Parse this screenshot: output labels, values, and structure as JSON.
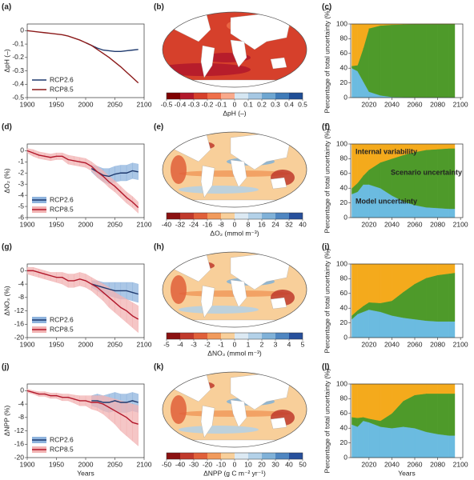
{
  "chart_data": [
    {
      "type": "line",
      "label": "(a)",
      "ylabel": "ΔpH (–)",
      "x": [
        1900,
        1910,
        1920,
        1930,
        1940,
        1950,
        1960,
        1970,
        1980,
        1990,
        2000,
        2010,
        2020,
        2030,
        2040,
        2050,
        2060,
        2070,
        2080,
        2090
      ],
      "xlim": [
        1900,
        2100
      ],
      "xticks": [
        1900,
        1950,
        2000,
        2050,
        2100
      ],
      "ylim": [
        -0.5,
        0.05
      ],
      "yticks": [
        0,
        -0.1,
        -0.2,
        -0.3,
        -0.4,
        -0.5
      ],
      "legend": "lower left",
      "series": [
        {
          "name": "RCP2.6",
          "color": "#1f3a6e",
          "values": [
            null,
            null,
            null,
            null,
            null,
            null,
            null,
            null,
            null,
            null,
            -0.09,
            -0.11,
            -0.13,
            -0.145,
            -0.15,
            -0.155,
            -0.155,
            -0.15,
            -0.145,
            -0.14
          ]
        },
        {
          "name": "RCP8.5",
          "color": "#8b1a1a",
          "values": [
            0,
            -0.005,
            -0.01,
            -0.015,
            -0.02,
            -0.025,
            -0.03,
            -0.04,
            -0.055,
            -0.07,
            -0.09,
            -0.11,
            -0.14,
            -0.17,
            -0.2,
            -0.235,
            -0.27,
            -0.31,
            -0.35,
            -0.39
          ]
        }
      ]
    },
    {
      "type": "map",
      "label": "(b)",
      "colorbar_label": "ΔpH (–)",
      "colorbar_ticks": [
        -0.5,
        -0.4,
        -0.3,
        -0.2,
        -0.1,
        0,
        0.1,
        0.2,
        0.3,
        0.4,
        0.5
      ],
      "colors": [
        "#7f0000",
        "#b2182b",
        "#d6402b",
        "#ef6f4a",
        "#f9a98b",
        "#d5e6f2",
        "#a6c8e3",
        "#6ea6d1",
        "#3f7bb8",
        "#1f4e96"
      ]
    },
    {
      "type": "area",
      "label": "(c)",
      "ylabel": "Percentage of total uncertainty (%)",
      "x": [
        2005,
        2010,
        2015,
        2020,
        2030,
        2040,
        2050,
        2060,
        2070,
        2080,
        2090,
        2095
      ],
      "xlim": [
        2004,
        2102
      ],
      "xticks": [
        2020,
        2040,
        2060,
        2080,
        2100
      ],
      "ylim": [
        0,
        100
      ],
      "yticks": [
        0,
        20,
        40,
        60,
        80,
        100
      ],
      "series": [
        {
          "color": "#6bbbe0",
          "values": [
            40,
            36,
            22,
            8,
            3,
            1,
            0.5,
            0.3,
            0.2,
            0.2,
            0.1,
            0.1
          ]
        },
        {
          "color": "#4e9a2a",
          "values": [
            3,
            8,
            45,
            86,
            95,
            98,
            99,
            99.5,
            99.7,
            99.8,
            99.9,
            99.9
          ]
        },
        {
          "color": "#f4aa1c",
          "values": [
            57,
            56,
            33,
            6,
            2,
            1,
            0.5,
            0.2,
            0.1,
            0,
            0,
            0
          ]
        }
      ]
    },
    {
      "type": "line",
      "label": "(d)",
      "ylabel": "ΔO₂ (%)",
      "x": [
        1900,
        1910,
        1920,
        1930,
        1940,
        1950,
        1960,
        1970,
        1980,
        1990,
        2000,
        2010,
        2020,
        2030,
        2040,
        2050,
        2060,
        2070,
        2080,
        2090
      ],
      "xlim": [
        1900,
        2100
      ],
      "xticks": [
        1900,
        1950,
        2000,
        2050,
        2100
      ],
      "ylim": [
        -6,
        0.6
      ],
      "yticks": [
        0,
        -1,
        -2,
        -3,
        -4,
        -5,
        -6
      ],
      "legend": "lower left",
      "series": [
        {
          "name": "RCP2.6",
          "color": "#1f3a6e",
          "band_color": "#8fb4dd",
          "values": [
            null,
            null,
            null,
            null,
            null,
            null,
            null,
            null,
            null,
            null,
            null,
            -1.6,
            -1.9,
            -2.2,
            -2.3,
            -2.1,
            -2.0,
            -2.0,
            -1.8,
            -1.9
          ],
          "upper": [
            null,
            null,
            null,
            null,
            null,
            null,
            null,
            null,
            null,
            null,
            null,
            -1.3,
            -1.4,
            -1.6,
            -1.6,
            -1.4,
            -1.3,
            -1.3,
            -1.1,
            -1.2
          ],
          "lower": [
            null,
            null,
            null,
            null,
            null,
            null,
            null,
            null,
            null,
            null,
            null,
            -1.9,
            -2.4,
            -2.8,
            -3.0,
            -2.8,
            -2.7,
            -2.7,
            -2.5,
            -2.6
          ]
        },
        {
          "name": "RCP8.5",
          "color": "#b2182b",
          "band_color": "#f2b3b3",
          "values": [
            0,
            -0.2,
            -0.4,
            -0.5,
            -0.6,
            -0.5,
            -0.5,
            -0.8,
            -0.9,
            -1.0,
            -1.1,
            -1.4,
            -1.9,
            -2.3,
            -2.8,
            -3.2,
            -3.7,
            -4.2,
            -4.6,
            -5.1
          ],
          "upper": [
            0.2,
            0.1,
            -0.1,
            -0.2,
            -0.3,
            -0.2,
            -0.2,
            -0.4,
            -0.5,
            -0.6,
            -0.7,
            -1.0,
            -1.4,
            -1.8,
            -2.3,
            -2.7,
            -3.2,
            -3.7,
            -4.1,
            -4.6
          ],
          "lower": [
            -0.2,
            -0.5,
            -0.7,
            -0.8,
            -0.9,
            -0.8,
            -0.8,
            -1.2,
            -1.3,
            -1.4,
            -1.5,
            -1.8,
            -2.4,
            -2.8,
            -3.3,
            -3.7,
            -4.2,
            -4.7,
            -5.1,
            -5.6
          ]
        }
      ]
    },
    {
      "type": "map",
      "label": "(e)",
      "colorbar_label": "ΔO₂ (mmol m⁻³)",
      "colorbar_ticks": [
        -40,
        -32,
        -24,
        -16,
        -8,
        0,
        8,
        16,
        24,
        32,
        40
      ],
      "colors": [
        "#8b1010",
        "#c0392b",
        "#e0603a",
        "#f19a5c",
        "#f8cf9a",
        "#dce9f3",
        "#b3d1e8",
        "#80b1d8",
        "#4f86c1",
        "#27509b"
      ]
    },
    {
      "type": "area",
      "label": "(f)",
      "ylabel": "Percentage of total uncertainty (%)",
      "x": [
        2005,
        2010,
        2015,
        2020,
        2030,
        2040,
        2050,
        2060,
        2070,
        2080,
        2090,
        2095
      ],
      "xlim": [
        2004,
        2102
      ],
      "xticks": [
        2020,
        2040,
        2060,
        2080,
        2100
      ],
      "ylim": [
        0,
        100
      ],
      "yticks": [
        0,
        20,
        40,
        60,
        80,
        100
      ],
      "series": [
        {
          "name": "Model uncertainty",
          "color": "#6bbbe0",
          "values": [
            32,
            35,
            45,
            45,
            40,
            30,
            22,
            17,
            14,
            13,
            12,
            12
          ]
        },
        {
          "name": "Scenario uncertainty",
          "color": "#4e9a2a",
          "values": [
            8,
            12,
            12,
            20,
            35,
            50,
            63,
            72,
            78,
            80,
            82,
            82
          ]
        },
        {
          "name": "Internal variability",
          "color": "#f4aa1c",
          "values": [
            60,
            53,
            43,
            35,
            25,
            20,
            15,
            11,
            8,
            7,
            6,
            6
          ]
        }
      ]
    },
    {
      "type": "line",
      "label": "(g)",
      "ylabel": "ΔNO₃ (%)",
      "x": [
        1900,
        1910,
        1920,
        1930,
        1940,
        1950,
        1960,
        1970,
        1980,
        1990,
        2000,
        2010,
        2020,
        2030,
        2040,
        2050,
        2060,
        2070,
        2080,
        2090
      ],
      "xlim": [
        1900,
        2100
      ],
      "xticks": [
        1900,
        1950,
        2000,
        2050,
        2100
      ],
      "ylim": [
        -20,
        2
      ],
      "yticks": [
        0,
        -4,
        -8,
        -12,
        -16,
        -20
      ],
      "legend": "lower left",
      "series": [
        {
          "name": "RCP2.6",
          "color": "#1f3a6e",
          "band_color": "#8fb4dd",
          "values": [
            null,
            null,
            null,
            null,
            null,
            null,
            null,
            null,
            null,
            null,
            null,
            -4,
            -4.5,
            -5,
            -5.5,
            -6,
            -6,
            -6,
            -6.5,
            -7
          ],
          "upper": [
            null,
            null,
            null,
            null,
            null,
            null,
            null,
            null,
            null,
            null,
            null,
            -3,
            -3,
            -3.5,
            -3.5,
            -3.5,
            -3.5,
            -3.5,
            -3.5,
            -4
          ],
          "lower": [
            null,
            null,
            null,
            null,
            null,
            null,
            null,
            null,
            null,
            null,
            null,
            -5,
            -6,
            -7,
            -7.5,
            -8,
            -8.5,
            -8.5,
            -9,
            -9.5
          ]
        },
        {
          "name": "RCP8.5",
          "color": "#b2182b",
          "band_color": "#f2b3b3",
          "values": [
            0,
            0,
            -0.5,
            -1,
            -1.5,
            -2,
            -2,
            -3,
            -3,
            -2.5,
            -3,
            -4,
            -5,
            -6.5,
            -8,
            -9.5,
            -11,
            -12,
            -13.5,
            -14.5
          ],
          "upper": [
            1,
            1,
            0.5,
            0,
            -0.5,
            -0.5,
            -0.5,
            -1,
            -1,
            -0.5,
            -1,
            -2,
            -3,
            -4,
            -5,
            -6.5,
            -7.5,
            -8.5,
            -9.5,
            -10.5
          ],
          "lower": [
            -1,
            -1.5,
            -2,
            -2.5,
            -3,
            -3.5,
            -4,
            -5,
            -5,
            -4.5,
            -5,
            -6,
            -7.5,
            -9,
            -11,
            -12.5,
            -14,
            -15.5,
            -17,
            -18.5
          ]
        }
      ]
    },
    {
      "type": "map",
      "label": "(h)",
      "colorbar_label": "ΔNO₃ (mmol m⁻³)",
      "colorbar_ticks": [
        -5,
        -4,
        -3,
        -2,
        -1,
        0,
        1,
        2,
        3,
        4,
        5
      ],
      "colors": [
        "#8b1010",
        "#c0392b",
        "#e0603a",
        "#f19a5c",
        "#f8cf9a",
        "#dce9f3",
        "#b3d1e8",
        "#80b1d8",
        "#4f86c1",
        "#27509b"
      ]
    },
    {
      "type": "area",
      "label": "(i)",
      "ylabel": "Percentage of total uncertainty (%)",
      "x": [
        2005,
        2010,
        2015,
        2020,
        2030,
        2040,
        2050,
        2060,
        2070,
        2080,
        2090,
        2095
      ],
      "xlim": [
        2004,
        2102
      ],
      "xticks": [
        2020,
        2040,
        2060,
        2080,
        2100
      ],
      "ylim": [
        0,
        100
      ],
      "yticks": [
        0,
        20,
        40,
        60,
        80,
        100
      ],
      "series": [
        {
          "color": "#6bbbe0",
          "values": [
            25,
            32,
            35,
            38,
            35,
            30,
            27,
            25,
            23,
            22,
            22,
            22
          ]
        },
        {
          "color": "#4e9a2a",
          "values": [
            5,
            5,
            8,
            10,
            12,
            20,
            35,
            48,
            58,
            63,
            65,
            66
          ]
        },
        {
          "color": "#f4aa1c",
          "values": [
            70,
            63,
            57,
            52,
            53,
            50,
            38,
            27,
            19,
            15,
            13,
            12
          ]
        }
      ]
    },
    {
      "type": "line",
      "label": "(j)",
      "ylabel": "ΔNPP (%)",
      "xlabel": "Years",
      "x": [
        1900,
        1910,
        1920,
        1930,
        1940,
        1950,
        1960,
        1970,
        1980,
        1990,
        2000,
        2010,
        2020,
        2030,
        2040,
        2050,
        2060,
        2070,
        2080,
        2090
      ],
      "xlim": [
        1900,
        2100
      ],
      "xticks": [
        1900,
        1950,
        2000,
        2050,
        2100
      ],
      "ylim": [
        -20,
        2
      ],
      "yticks": [
        0,
        -4,
        -8,
        -12,
        -16,
        -20
      ],
      "legend": "lower left",
      "series": [
        {
          "name": "RCP2.6",
          "color": "#1f3a6e",
          "band_color": "#8fb4dd",
          "values": [
            null,
            null,
            null,
            null,
            null,
            null,
            null,
            null,
            null,
            null,
            null,
            -3,
            -3,
            -3.5,
            -3.5,
            -3,
            -3.5,
            -3.5,
            -3,
            -3.5
          ],
          "upper": [
            null,
            null,
            null,
            null,
            null,
            null,
            null,
            null,
            null,
            null,
            null,
            -1.5,
            -1,
            -1.5,
            -1,
            -0.5,
            -1,
            -1,
            -0.5,
            -1
          ],
          "lower": [
            null,
            null,
            null,
            null,
            null,
            null,
            null,
            null,
            null,
            null,
            null,
            -4.5,
            -5,
            -6,
            -6.5,
            -6,
            -6.5,
            -6.5,
            -6,
            -6.5
          ]
        },
        {
          "name": "RCP8.5",
          "color": "#b2182b",
          "band_color": "#f2b3b3",
          "values": [
            0,
            -0.5,
            -1,
            -1,
            -1.5,
            -1.5,
            -2,
            -2,
            -2.5,
            -3,
            -3,
            -3.5,
            -3.5,
            -4,
            -5,
            -6,
            -7,
            -8,
            -9.5,
            -10
          ],
          "upper": [
            0.5,
            0,
            -0.3,
            -0.3,
            -0.7,
            -0.7,
            -1,
            -1,
            -1.3,
            -1.5,
            -1.5,
            -1.5,
            -1.5,
            -1.5,
            -2,
            -2.5,
            -3,
            -3.5,
            -4,
            -4.5
          ],
          "lower": [
            -0.5,
            -1,
            -1.7,
            -1.7,
            -2.3,
            -2.3,
            -3,
            -3,
            -3.7,
            -4.5,
            -4.5,
            -5.5,
            -6,
            -7,
            -8.5,
            -10,
            -12,
            -13.5,
            -15,
            -16.5
          ]
        }
      ]
    },
    {
      "type": "map",
      "label": "(k)",
      "colorbar_label": "ΔNPP (g C m⁻² yr⁻¹)",
      "colorbar_ticks": [
        -50,
        -40,
        -30,
        -20,
        -10,
        0,
        10,
        20,
        30,
        40,
        50
      ],
      "colors": [
        "#8b1010",
        "#c0392b",
        "#e0603a",
        "#f19a5c",
        "#f8cf9a",
        "#dce9f3",
        "#b3d1e8",
        "#80b1d8",
        "#4f86c1",
        "#27509b"
      ]
    },
    {
      "type": "area",
      "label": "(l)",
      "ylabel": "Percentage of total uncertainty (%)",
      "xlabel": "Years",
      "x": [
        2005,
        2010,
        2015,
        2020,
        2030,
        2040,
        2050,
        2060,
        2070,
        2080,
        2090,
        2095
      ],
      "xlim": [
        2004,
        2102
      ],
      "xticks": [
        2020,
        2040,
        2060,
        2080,
        2100
      ],
      "ylim": [
        0,
        100
      ],
      "yticks": [
        0,
        20,
        40,
        60,
        80,
        100
      ],
      "series": [
        {
          "color": "#6bbbe0",
          "values": [
            45,
            42,
            50,
            48,
            42,
            40,
            42,
            40,
            35,
            32,
            30,
            30
          ]
        },
        {
          "color": "#4e9a2a",
          "values": [
            10,
            12,
            5,
            5,
            8,
            20,
            35,
            45,
            52,
            55,
            57,
            57
          ]
        },
        {
          "color": "#f4aa1c",
          "values": [
            45,
            46,
            45,
            47,
            50,
            40,
            23,
            15,
            13,
            13,
            13,
            13
          ]
        }
      ]
    }
  ]
}
